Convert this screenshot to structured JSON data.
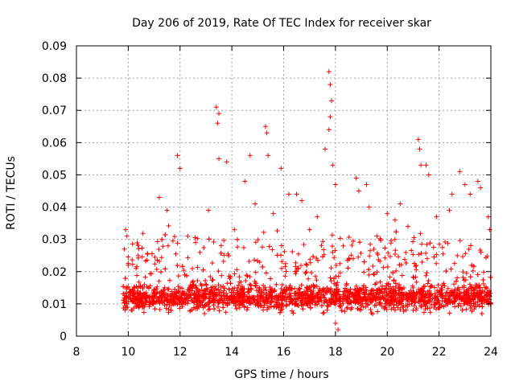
{
  "chart_data": {
    "type": "scatter",
    "title": "Day 206 of 2019, Rate Of TEC Index for receiver skar",
    "xlabel": "GPS time / hours",
    "ylabel": "ROTI / TECUs",
    "xlim": [
      8,
      24
    ],
    "ylim": [
      0,
      0.09
    ],
    "x_ticks": [
      "8",
      "10",
      "12",
      "14",
      "16",
      "18",
      "20",
      "22",
      "24"
    ],
    "y_ticks": [
      "0",
      "0.01",
      "0.02",
      "0.03",
      "0.04",
      "0.05",
      "0.06",
      "0.07",
      "0.08",
      "0.09"
    ],
    "grid": true,
    "marker": "+",
    "color": "#ff0000",
    "series": [
      {
        "name": "ROTI",
        "points": [
          [
            9.85,
            0.027
          ],
          [
            9.9,
            0.033
          ],
          [
            9.95,
            0.031
          ],
          [
            10.0,
            0.022
          ],
          [
            10.3,
            0.021
          ],
          [
            11.2,
            0.043
          ],
          [
            11.5,
            0.039
          ],
          [
            11.9,
            0.056
          ],
          [
            12.0,
            0.052
          ],
          [
            12.3,
            0.031
          ],
          [
            12.6,
            0.029
          ],
          [
            13.1,
            0.039
          ],
          [
            13.4,
            0.071
          ],
          [
            13.5,
            0.069
          ],
          [
            13.45,
            0.066
          ],
          [
            13.5,
            0.055
          ],
          [
            13.8,
            0.054
          ],
          [
            14.1,
            0.033
          ],
          [
            14.5,
            0.048
          ],
          [
            14.7,
            0.056
          ],
          [
            14.9,
            0.041
          ],
          [
            15.3,
            0.065
          ],
          [
            15.35,
            0.063
          ],
          [
            15.4,
            0.056
          ],
          [
            15.6,
            0.038
          ],
          [
            15.9,
            0.052
          ],
          [
            16.2,
            0.044
          ],
          [
            16.5,
            0.044
          ],
          [
            16.7,
            0.042
          ],
          [
            17.0,
            0.033
          ],
          [
            17.3,
            0.037
          ],
          [
            17.6,
            0.058
          ],
          [
            17.75,
            0.082
          ],
          [
            17.8,
            0.078
          ],
          [
            17.85,
            0.073
          ],
          [
            17.8,
            0.068
          ],
          [
            17.75,
            0.064
          ],
          [
            17.9,
            0.053
          ],
          [
            18.0,
            0.047
          ],
          [
            18.3,
            0.028
          ],
          [
            18.8,
            0.049
          ],
          [
            18.9,
            0.045
          ],
          [
            19.2,
            0.047
          ],
          [
            19.3,
            0.04
          ],
          [
            19.6,
            0.031
          ],
          [
            20.0,
            0.038
          ],
          [
            20.3,
            0.036
          ],
          [
            20.5,
            0.041
          ],
          [
            20.8,
            0.034
          ],
          [
            21.2,
            0.061
          ],
          [
            21.25,
            0.058
          ],
          [
            21.3,
            0.053
          ],
          [
            21.5,
            0.053
          ],
          [
            21.6,
            0.05
          ],
          [
            21.9,
            0.037
          ],
          [
            22.4,
            0.039
          ],
          [
            22.5,
            0.044
          ],
          [
            22.8,
            0.051
          ],
          [
            23.0,
            0.047
          ],
          [
            23.2,
            0.044
          ],
          [
            23.5,
            0.048
          ],
          [
            23.6,
            0.046
          ],
          [
            23.9,
            0.037
          ],
          [
            23.95,
            0.033
          ],
          [
            10.5,
            0.012
          ],
          [
            11.0,
            0.013
          ],
          [
            12.5,
            0.016
          ],
          [
            14.0,
            0.011
          ],
          [
            16.0,
            0.014
          ],
          [
            18.1,
            0.002
          ],
          [
            18.0,
            0.004
          ],
          [
            19.5,
            0.012
          ],
          [
            21.0,
            0.015
          ],
          [
            22.0,
            0.011
          ],
          [
            23.0,
            0.013
          ],
          [
            24.0,
            0.01
          ]
        ]
      }
    ]
  }
}
